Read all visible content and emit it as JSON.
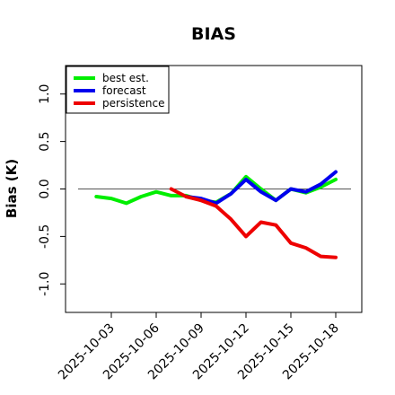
{
  "chart_data": {
    "type": "line",
    "title": "BIAS",
    "xlabel": "",
    "ylabel": "Bias (K)",
    "ylim": [
      -1.3,
      1.3
    ],
    "yticks": [
      -1.0,
      -0.5,
      0.0,
      0.5,
      1.0
    ],
    "ytick_labels": [
      "-1.0",
      "-0.5",
      "0.0",
      "0.5",
      "1.0"
    ],
    "xticks": [
      "2025-10-03",
      "2025-10-06",
      "2025-10-09",
      "2025-10-12",
      "2025-10-15",
      "2025-10-18"
    ],
    "highlighted_tick": "2025-10-09",
    "highlight_color": "#1a7a1a",
    "reference_line": 0.0,
    "grid": false,
    "legend_position": "top-left",
    "series": [
      {
        "name": "best est.",
        "color": "#00ee00",
        "x": [
          "2025-10-02",
          "2025-10-03",
          "2025-10-04",
          "2025-10-05",
          "2025-10-06",
          "2025-10-07",
          "2025-10-08",
          "2025-10-09",
          "2025-10-10",
          "2025-10-11",
          "2025-10-12",
          "2025-10-13",
          "2025-10-14",
          "2025-10-15",
          "2025-10-16",
          "2025-10-17",
          "2025-10-18"
        ],
        "values": [
          -0.08,
          -0.1,
          -0.15,
          -0.08,
          -0.03,
          -0.07,
          -0.07,
          -0.12,
          -0.14,
          -0.05,
          0.13,
          0.0,
          -0.12,
          0.0,
          -0.04,
          0.02,
          0.1
        ]
      },
      {
        "name": "forecast",
        "color": "#0000ee",
        "x": [
          "2025-10-08",
          "2025-10-09",
          "2025-10-10",
          "2025-10-11",
          "2025-10-12",
          "2025-10-13",
          "2025-10-14",
          "2025-10-15",
          "2025-10-16",
          "2025-10-17",
          "2025-10-18"
        ],
        "values": [
          -0.08,
          -0.1,
          -0.15,
          -0.05,
          0.1,
          -0.03,
          -0.12,
          0.0,
          -0.03,
          0.05,
          0.18
        ]
      },
      {
        "name": "persistence",
        "color": "#ee0000",
        "x": [
          "2025-10-07",
          "2025-10-08",
          "2025-10-09",
          "2025-10-10",
          "2025-10-11",
          "2025-10-12",
          "2025-10-13",
          "2025-10-14",
          "2025-10-15",
          "2025-10-16",
          "2025-10-17",
          "2025-10-18"
        ],
        "values": [
          0.0,
          -0.08,
          -0.12,
          -0.18,
          -0.32,
          -0.5,
          -0.35,
          -0.38,
          -0.57,
          -0.62,
          -0.71,
          -0.72
        ]
      }
    ]
  }
}
